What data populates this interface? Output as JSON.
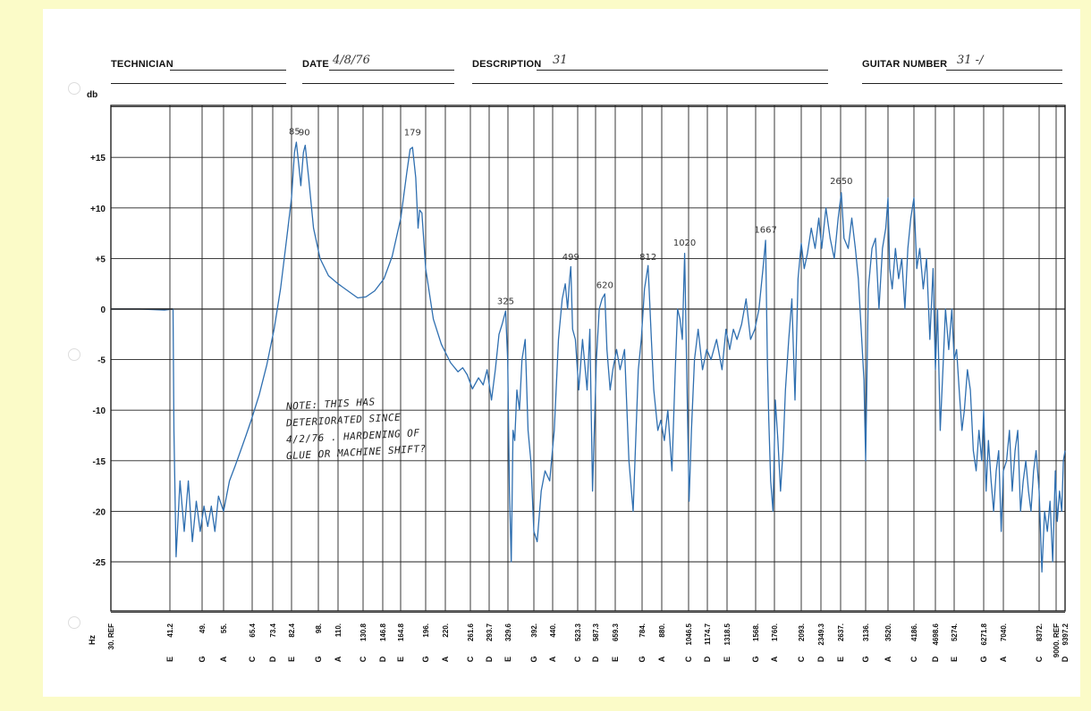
{
  "header": {
    "technician_label": "TECHNICIAN",
    "technician_value": "",
    "date_label": "DATE",
    "date_value": "4/8/76",
    "description_label": "DESCRIPTION",
    "description_value": "31",
    "guitar_label": "GUITAR NUMBER",
    "guitar_value": "31 -/"
  },
  "note_lines": [
    "NOTE:  THIS HAS",
    "DETERIORATED SINCE",
    "4/2/76 . HARDENING OF",
    "GLUE OR MACHINE SHIFT?"
  ],
  "chart_data": {
    "type": "line",
    "title": "",
    "ylabel": "db",
    "xlabel": "Hz",
    "ylim": [
      -30,
      20
    ],
    "yticks": [
      {
        "label": "+15",
        "value": 15
      },
      {
        "label": "+10",
        "value": 10
      },
      {
        "label": "+5",
        "value": 5
      },
      {
        "label": "0",
        "value": 0
      },
      {
        "label": "-5",
        "value": -5
      },
      {
        "label": "-10",
        "value": -10
      },
      {
        "label": "-15",
        "value": -15
      },
      {
        "label": "-20",
        "value": -20
      },
      {
        "label": "-25",
        "value": -25
      }
    ],
    "xticks": [
      {
        "freq": "30. REF",
        "note": ""
      },
      {
        "freq": "41.2",
        "note": "E"
      },
      {
        "freq": "49.",
        "note": "G"
      },
      {
        "freq": "55.",
        "note": "A"
      },
      {
        "freq": "65.4",
        "note": "C"
      },
      {
        "freq": "73.4",
        "note": "D"
      },
      {
        "freq": "82.4",
        "note": "E"
      },
      {
        "freq": "98.",
        "note": "G"
      },
      {
        "freq": "110.",
        "note": "A"
      },
      {
        "freq": "130.8",
        "note": "C"
      },
      {
        "freq": "146.8",
        "note": "D"
      },
      {
        "freq": "164.8",
        "note": "E"
      },
      {
        "freq": "196.",
        "note": "G"
      },
      {
        "freq": "220.",
        "note": "A"
      },
      {
        "freq": "261.6",
        "note": "C"
      },
      {
        "freq": "293.7",
        "note": "D"
      },
      {
        "freq": "329.6",
        "note": "E"
      },
      {
        "freq": "392.",
        "note": "G"
      },
      {
        "freq": "440.",
        "note": "A"
      },
      {
        "freq": "523.3",
        "note": "C"
      },
      {
        "freq": "587.3",
        "note": "D"
      },
      {
        "freq": "659.3",
        "note": "E"
      },
      {
        "freq": "784.",
        "note": "G"
      },
      {
        "freq": "880.",
        "note": "A"
      },
      {
        "freq": "1046.5",
        "note": "C"
      },
      {
        "freq": "1174.7",
        "note": "D"
      },
      {
        "freq": "1318.5",
        "note": "E"
      },
      {
        "freq": "1568.",
        "note": "G"
      },
      {
        "freq": "1760.",
        "note": "A"
      },
      {
        "freq": "2093.",
        "note": "C"
      },
      {
        "freq": "2349.3",
        "note": "D"
      },
      {
        "freq": "2637.",
        "note": "E"
      },
      {
        "freq": "3136.",
        "note": "G"
      },
      {
        "freq": "3520.",
        "note": "A"
      },
      {
        "freq": "4186.",
        "note": "C"
      },
      {
        "freq": "4698.6",
        "note": "D"
      },
      {
        "freq": "5274.",
        "note": "E"
      },
      {
        "freq": "6271.8",
        "note": "G"
      },
      {
        "freq": "7040.",
        "note": "A"
      },
      {
        "freq": "8372.",
        "note": "C"
      },
      {
        "freq": "9000. REF",
        "note": ""
      },
      {
        "freq": "9397.2",
        "note": "D"
      }
    ],
    "annotations": [
      {
        "text": "85",
        "hz": 84,
        "db": 17.0
      },
      {
        "text": "90",
        "hz": 89.5,
        "db": 16.9
      },
      {
        "text": "179",
        "hz": 179,
        "db": 16.9
      },
      {
        "text": "325",
        "hz": 325,
        "db": 0.2
      },
      {
        "text": "499",
        "hz": 499,
        "db": 4.6
      },
      {
        "text": "620",
        "hz": 620,
        "db": 1.8
      },
      {
        "text": "812",
        "hz": 812,
        "db": 4.6
      },
      {
        "text": "1020",
        "hz": 1020,
        "db": 6.0
      },
      {
        "text": "1667",
        "hz": 1667,
        "db": 7.3
      },
      {
        "text": "2650",
        "hz": 2650,
        "db": 12.1
      }
    ],
    "series": [
      {
        "color": "#2f6fb0",
        "points": [
          [
            30,
            0
          ],
          [
            35,
            0
          ],
          [
            40,
            -0.1
          ],
          [
            41.9,
            0
          ],
          [
            42.1,
            -12
          ],
          [
            42.6,
            -24.5
          ],
          [
            43.5,
            -17
          ],
          [
            44.5,
            -22
          ],
          [
            45.5,
            -17
          ],
          [
            46.5,
            -23
          ],
          [
            47.5,
            -19
          ],
          [
            48.5,
            -22
          ],
          [
            49.5,
            -19.5
          ],
          [
            50.5,
            -21.5
          ],
          [
            51.5,
            -19.5
          ],
          [
            52.5,
            -22
          ],
          [
            53.5,
            -18.5
          ],
          [
            55,
            -20
          ],
          [
            57,
            -17
          ],
          [
            59,
            -15.5
          ],
          [
            61,
            -14
          ],
          [
            63,
            -12.5
          ],
          [
            65,
            -11
          ],
          [
            68,
            -8.5
          ],
          [
            71,
            -5.5
          ],
          [
            74,
            -2
          ],
          [
            77,
            2
          ],
          [
            80,
            7
          ],
          [
            82.4,
            11
          ],
          [
            84,
            15.5
          ],
          [
            85,
            16.5
          ],
          [
            86.5,
            14
          ],
          [
            87.5,
            12.2
          ],
          [
            89,
            15.5
          ],
          [
            90,
            16.2
          ],
          [
            92,
            13
          ],
          [
            95,
            8
          ],
          [
            99,
            5
          ],
          [
            104,
            3.3
          ],
          [
            110,
            2.5
          ],
          [
            120,
            1.6
          ],
          [
            126,
            1.1
          ],
          [
            133,
            1.2
          ],
          [
            140,
            1.8
          ],
          [
            148,
            3
          ],
          [
            156,
            5.2
          ],
          [
            165,
            9
          ],
          [
            172,
            13.5
          ],
          [
            176,
            15.8
          ],
          [
            179,
            16
          ],
          [
            183,
            13
          ],
          [
            186,
            8
          ],
          [
            188,
            9.8
          ],
          [
            191,
            9.5
          ],
          [
            196,
            4
          ],
          [
            205,
            -1
          ],
          [
            215,
            -3.5
          ],
          [
            228,
            -5.3
          ],
          [
            240,
            -6.2
          ],
          [
            248,
            -5.8
          ],
          [
            256,
            -6.5
          ],
          [
            265,
            -7.9
          ],
          [
            275,
            -6.8
          ],
          [
            283,
            -7.5
          ],
          [
            290,
            -6
          ],
          [
            298,
            -9
          ],
          [
            305,
            -6
          ],
          [
            312,
            -2.5
          ],
          [
            318,
            -1.5
          ],
          [
            325,
            -0.2
          ],
          [
            329,
            -5
          ],
          [
            333,
            -18
          ],
          [
            337,
            -25
          ],
          [
            341,
            -12
          ],
          [
            345,
            -13
          ],
          [
            350,
            -8
          ],
          [
            356,
            -10
          ],
          [
            362,
            -5
          ],
          [
            370,
            -3
          ],
          [
            377,
            -12
          ],
          [
            384,
            -15
          ],
          [
            392,
            -22
          ],
          [
            400,
            -23
          ],
          [
            410,
            -18
          ],
          [
            420,
            -16
          ],
          [
            432,
            -17
          ],
          [
            445,
            -12
          ],
          [
            458,
            -3
          ],
          [
            470,
            1
          ],
          [
            480,
            2.5
          ],
          [
            488,
            0
          ],
          [
            495,
            3
          ],
          [
            499,
            4.2
          ],
          [
            505,
            -2
          ],
          [
            515,
            -3
          ],
          [
            527,
            -8
          ],
          [
            540,
            -3
          ],
          [
            556,
            -8
          ],
          [
            566,
            -2
          ],
          [
            576,
            -18
          ],
          [
            590,
            -5
          ],
          [
            600,
            0
          ],
          [
            610,
            1
          ],
          [
            620,
            1.5
          ],
          [
            628,
            -4
          ],
          [
            640,
            -8
          ],
          [
            650,
            -6
          ],
          [
            665,
            -4
          ],
          [
            680,
            -6
          ],
          [
            700,
            -4
          ],
          [
            720,
            -15
          ],
          [
            740,
            -20
          ],
          [
            756,
            -11
          ],
          [
            765,
            -6
          ],
          [
            780,
            -3
          ],
          [
            795,
            2
          ],
          [
            812,
            4.3
          ],
          [
            828,
            -3
          ],
          [
            840,
            -8
          ],
          [
            860,
            -12
          ],
          [
            875,
            -11
          ],
          [
            895,
            -13
          ],
          [
            915,
            -10
          ],
          [
            940,
            -16
          ],
          [
            960,
            -6
          ],
          [
            975,
            0
          ],
          [
            990,
            -1
          ],
          [
            1005,
            -3
          ],
          [
            1020,
            5.5
          ],
          [
            1035,
            -7
          ],
          [
            1050,
            -19
          ],
          [
            1065,
            -12
          ],
          [
            1085,
            -5
          ],
          [
            1110,
            -2
          ],
          [
            1140,
            -6
          ],
          [
            1170,
            -4
          ],
          [
            1200,
            -5
          ],
          [
            1240,
            -3
          ],
          [
            1280,
            -6
          ],
          [
            1310,
            -2
          ],
          [
            1340,
            -4
          ],
          [
            1370,
            -2
          ],
          [
            1400,
            -3
          ],
          [
            1440,
            -1.5
          ],
          [
            1480,
            1
          ],
          [
            1520,
            -3
          ],
          [
            1560,
            -2
          ],
          [
            1600,
            0
          ],
          [
            1640,
            4
          ],
          [
            1667,
            6.8
          ],
          [
            1685,
            -5
          ],
          [
            1700,
            -11
          ],
          [
            1720,
            -17
          ],
          [
            1745,
            -20
          ],
          [
            1770,
            -9
          ],
          [
            1800,
            -13
          ],
          [
            1830,
            -18
          ],
          [
            1860,
            -14
          ],
          [
            1890,
            -8
          ],
          [
            1930,
            -3
          ],
          [
            1970,
            1
          ],
          [
            2010,
            -9
          ],
          [
            2050,
            3
          ],
          [
            2093,
            6.5
          ],
          [
            2130,
            4
          ],
          [
            2170,
            5.5
          ],
          [
            2220,
            8
          ],
          [
            2270,
            6
          ],
          [
            2320,
            9
          ],
          [
            2360,
            6
          ],
          [
            2420,
            10
          ],
          [
            2480,
            7
          ],
          [
            2540,
            5
          ],
          [
            2600,
            9
          ],
          [
            2650,
            11.5
          ],
          [
            2700,
            7
          ],
          [
            2780,
            6
          ],
          [
            2850,
            9
          ],
          [
            2920,
            6
          ],
          [
            2980,
            3
          ],
          [
            3040,
            -2
          ],
          [
            3100,
            -7
          ],
          [
            3136,
            -15
          ],
          [
            3180,
            2
          ],
          [
            3240,
            6
          ],
          [
            3300,
            7
          ],
          [
            3360,
            0
          ],
          [
            3420,
            6
          ],
          [
            3480,
            8
          ],
          [
            3520,
            11
          ],
          [
            3560,
            4
          ],
          [
            3620,
            2
          ],
          [
            3700,
            6
          ],
          [
            3780,
            3
          ],
          [
            3860,
            5
          ],
          [
            3940,
            0
          ],
          [
            4020,
            6
          ],
          [
            4100,
            9
          ],
          [
            4186,
            11
          ],
          [
            4250,
            4
          ],
          [
            4320,
            6
          ],
          [
            4400,
            2
          ],
          [
            4480,
            5
          ],
          [
            4560,
            -3
          ],
          [
            4640,
            4
          ],
          [
            4698.6,
            -6
          ],
          [
            4760,
            0
          ],
          [
            4840,
            -12
          ],
          [
            4920,
            -6
          ],
          [
            5000,
            0
          ],
          [
            5100,
            -4
          ],
          [
            5200,
            0
          ],
          [
            5274,
            -5
          ],
          [
            5350,
            -4
          ],
          [
            5430,
            -8
          ],
          [
            5520,
            -12
          ],
          [
            5600,
            -10
          ],
          [
            5700,
            -6
          ],
          [
            5800,
            -8
          ],
          [
            5900,
            -14
          ],
          [
            6000,
            -16
          ],
          [
            6100,
            -12
          ],
          [
            6200,
            -15
          ],
          [
            6271.8,
            -10
          ],
          [
            6360,
            -18
          ],
          [
            6450,
            -13
          ],
          [
            6550,
            -17
          ],
          [
            6650,
            -20
          ],
          [
            6750,
            -16
          ],
          [
            6850,
            -14
          ],
          [
            6950,
            -22
          ],
          [
            7040,
            -16
          ],
          [
            7150,
            -15
          ],
          [
            7250,
            -12
          ],
          [
            7350,
            -18
          ],
          [
            7450,
            -14
          ],
          [
            7550,
            -12
          ],
          [
            7650,
            -20
          ],
          [
            7750,
            -17
          ],
          [
            7850,
            -15
          ],
          [
            7950,
            -18
          ],
          [
            8050,
            -20
          ],
          [
            8150,
            -16
          ],
          [
            8250,
            -14
          ],
          [
            8372,
            -18
          ],
          [
            8470,
            -26
          ],
          [
            8570,
            -20
          ],
          [
            8670,
            -22
          ],
          [
            8770,
            -19
          ],
          [
            8870,
            -25
          ],
          [
            8970,
            -16
          ],
          [
            9050,
            -21
          ],
          [
            9150,
            -18
          ],
          [
            9250,
            -20
          ],
          [
            9320,
            -15
          ],
          [
            9397.2,
            -14
          ]
        ]
      }
    ]
  }
}
